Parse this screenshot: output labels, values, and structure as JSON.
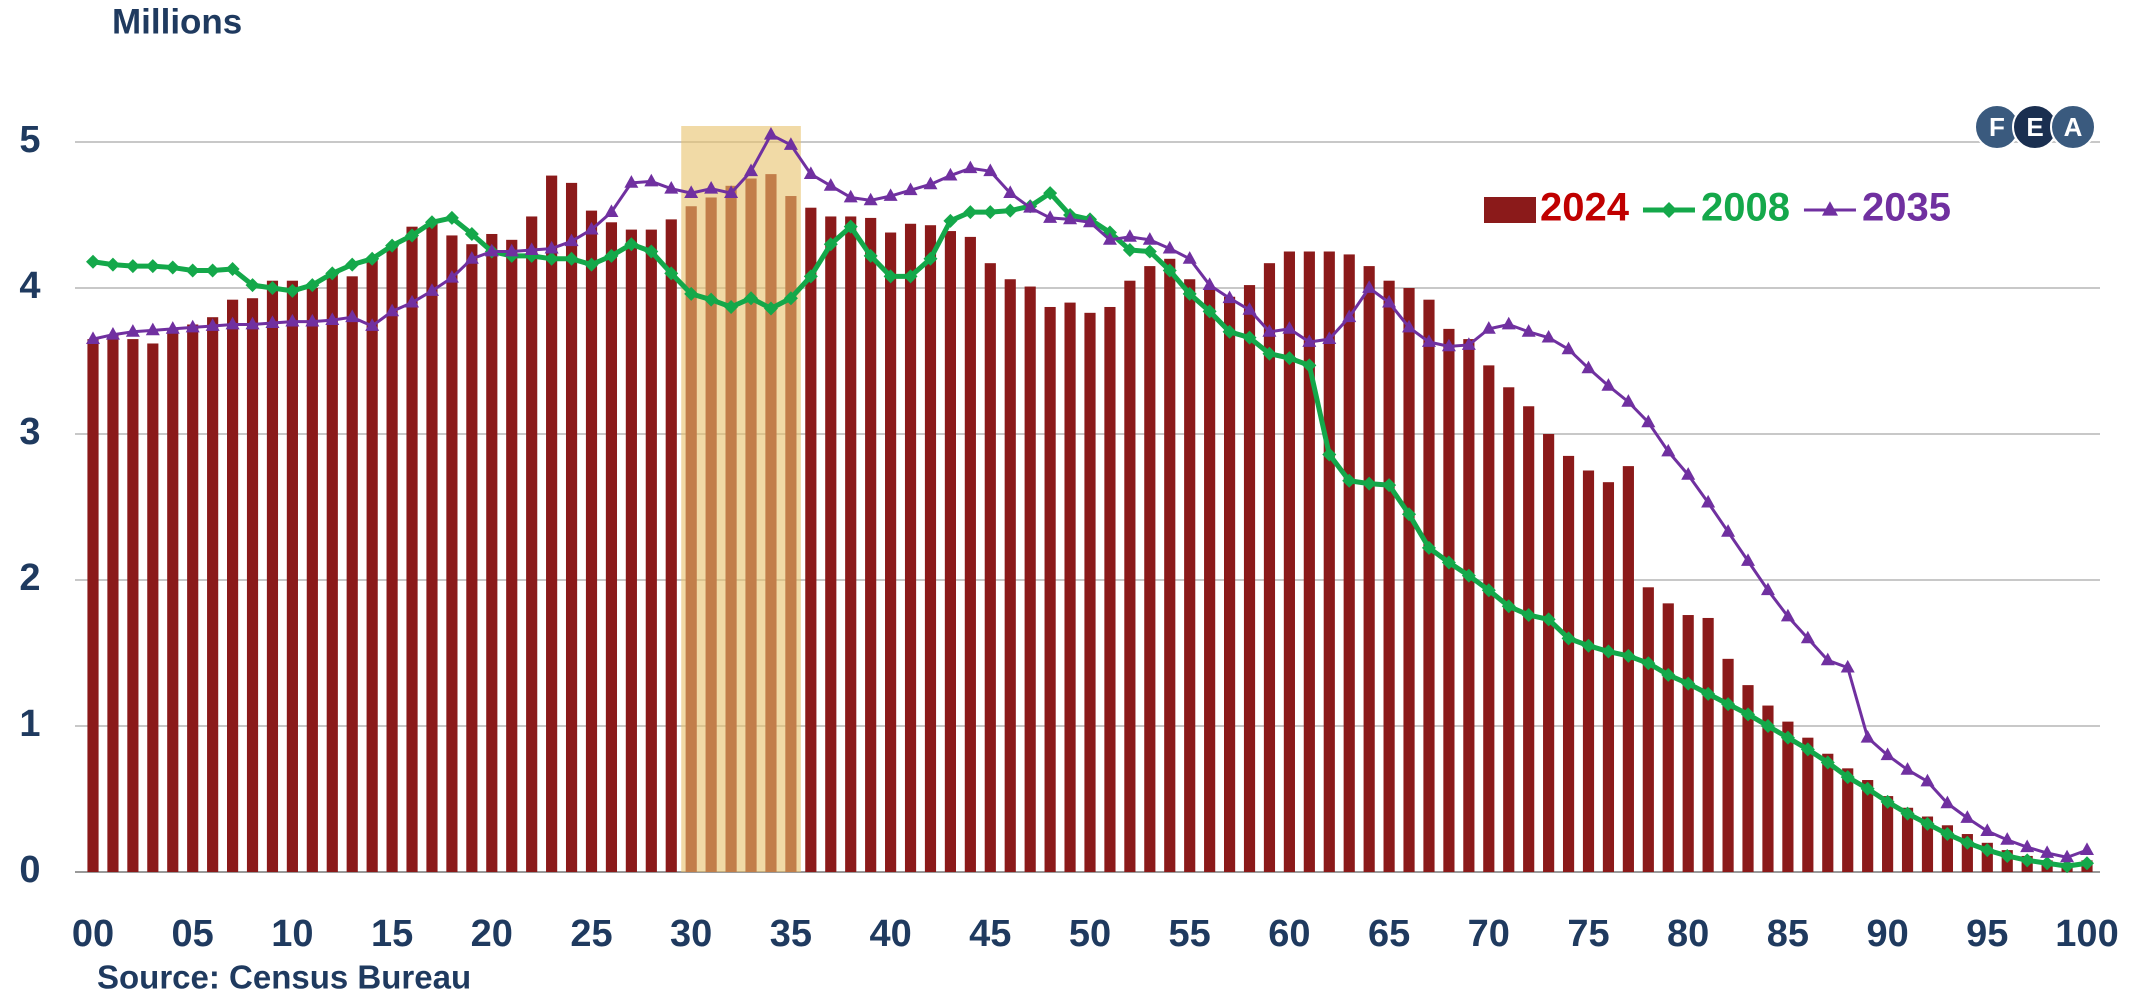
{
  "chart_data": {
    "type": "bar",
    "title": "Millions",
    "source": "Source: Census Bureau",
    "logo": [
      "F",
      "E",
      "A"
    ],
    "categories": [
      "00",
      null,
      null,
      null,
      null,
      "05",
      null,
      null,
      null,
      null,
      "10",
      null,
      null,
      null,
      null,
      "15",
      null,
      null,
      null,
      null,
      "20",
      null,
      null,
      null,
      null,
      "25",
      null,
      null,
      null,
      null,
      "30",
      null,
      null,
      null,
      null,
      "35",
      null,
      null,
      null,
      null,
      "40",
      null,
      null,
      null,
      null,
      "45",
      null,
      null,
      null,
      null,
      "50",
      null,
      null,
      null,
      null,
      "55",
      null,
      null,
      null,
      null,
      "60",
      null,
      null,
      null,
      null,
      "65",
      null,
      null,
      null,
      null,
      "70",
      null,
      null,
      null,
      null,
      "75",
      null,
      null,
      null,
      null,
      "80",
      null,
      null,
      null,
      null,
      "85",
      null,
      null,
      null,
      null,
      "90",
      null,
      null,
      null,
      null,
      "95",
      null,
      null,
      null,
      null,
      "100"
    ],
    "highlight_range": [
      30,
      35
    ],
    "ylim": [
      0,
      5
    ],
    "yticks": [
      0,
      1,
      2,
      3,
      4,
      5
    ],
    "grid": true,
    "legend": "top-right",
    "series": [
      {
        "name": "2024",
        "type": "bar",
        "color": "#8b1a1a",
        "label_color": "#c00000",
        "values": [
          3.65,
          3.68,
          3.65,
          3.62,
          3.72,
          3.75,
          3.8,
          3.92,
          3.93,
          4.05,
          4.05,
          4.0,
          4.1,
          4.08,
          4.2,
          4.3,
          4.42,
          4.45,
          4.36,
          4.3,
          4.37,
          4.33,
          4.49,
          4.77,
          4.72,
          4.53,
          4.45,
          4.4,
          4.4,
          4.47,
          4.56,
          4.62,
          4.7,
          4.75,
          4.78,
          4.63,
          4.55,
          4.49,
          4.49,
          4.48,
          4.38,
          4.44,
          4.43,
          4.39,
          4.35,
          4.17,
          4.06,
          4.01,
          3.87,
          3.9,
          3.83,
          3.87,
          4.05,
          4.15,
          4.2,
          4.06,
          3.99,
          3.94,
          4.02,
          4.17,
          4.25,
          4.25,
          4.25,
          4.23,
          4.15,
          4.05,
          4.0,
          3.92,
          3.72,
          3.65,
          3.47,
          3.32,
          3.19,
          3.0,
          2.85,
          2.75,
          2.67,
          2.78,
          1.95,
          1.84,
          1.76,
          1.74,
          1.46,
          1.28,
          1.14,
          1.03,
          0.92,
          0.81,
          0.71,
          0.63,
          0.52,
          0.44,
          0.38,
          0.32,
          0.26,
          0.2,
          0.15,
          0.11,
          0.08,
          0.06,
          0.08
        ]
      },
      {
        "name": "2008",
        "type": "line",
        "marker": "diamond",
        "color": "#14a84a",
        "label_color": "#14a84a",
        "values": [
          4.18,
          4.16,
          4.15,
          4.15,
          4.14,
          4.12,
          4.12,
          4.13,
          4.02,
          4.0,
          3.98,
          4.02,
          4.1,
          4.16,
          4.2,
          4.29,
          4.36,
          4.45,
          4.48,
          4.37,
          4.25,
          4.22,
          4.22,
          4.2,
          4.2,
          4.16,
          4.22,
          4.3,
          4.25,
          4.1,
          3.96,
          3.92,
          3.87,
          3.93,
          3.86,
          3.93,
          4.08,
          4.3,
          4.42,
          4.22,
          4.08,
          4.08,
          4.2,
          4.46,
          4.52,
          4.52,
          4.53,
          4.56,
          4.65,
          4.5,
          4.47,
          4.38,
          4.26,
          4.25,
          4.12,
          3.96,
          3.84,
          3.7,
          3.66,
          3.55,
          3.52,
          3.47,
          2.86,
          2.68,
          2.66,
          2.65,
          2.45,
          2.22,
          2.12,
          2.03,
          1.93,
          1.82,
          1.76,
          1.73,
          1.6,
          1.55,
          1.51,
          1.48,
          1.43,
          1.35,
          1.29,
          1.22,
          1.15,
          1.08,
          1.0,
          0.92,
          0.84,
          0.75,
          0.65,
          0.57,
          0.48,
          0.4,
          0.33,
          0.26,
          0.2,
          0.15,
          0.11,
          0.08,
          0.06,
          0.04,
          0.06
        ]
      },
      {
        "name": "2035",
        "type": "line",
        "marker": "triangle",
        "color": "#7030a0",
        "label_color": "#7030a0",
        "values": [
          3.65,
          3.68,
          3.7,
          3.71,
          3.72,
          3.73,
          3.74,
          3.75,
          3.75,
          3.76,
          3.77,
          3.77,
          3.78,
          3.8,
          3.74,
          3.84,
          3.9,
          3.98,
          4.07,
          4.2,
          4.25,
          4.25,
          4.26,
          4.27,
          4.32,
          4.4,
          4.52,
          4.72,
          4.73,
          4.68,
          4.65,
          4.68,
          4.65,
          4.8,
          5.05,
          4.98,
          4.78,
          4.7,
          4.62,
          4.6,
          4.63,
          4.67,
          4.71,
          4.77,
          4.82,
          4.8,
          4.65,
          4.55,
          4.48,
          4.47,
          4.45,
          4.33,
          4.35,
          4.33,
          4.27,
          4.2,
          4.02,
          3.93,
          3.85,
          3.7,
          3.72,
          3.63,
          3.65,
          3.8,
          4.0,
          3.9,
          3.73,
          3.63,
          3.6,
          3.61,
          3.72,
          3.75,
          3.7,
          3.66,
          3.58,
          3.45,
          3.33,
          3.22,
          3.08,
          2.88,
          2.72,
          2.53,
          2.33,
          2.13,
          1.93,
          1.75,
          1.6,
          1.45,
          1.4,
          0.92,
          0.8,
          0.7,
          0.62,
          0.47,
          0.37,
          0.28,
          0.22,
          0.17,
          0.13,
          0.1,
          0.15
        ]
      }
    ]
  }
}
